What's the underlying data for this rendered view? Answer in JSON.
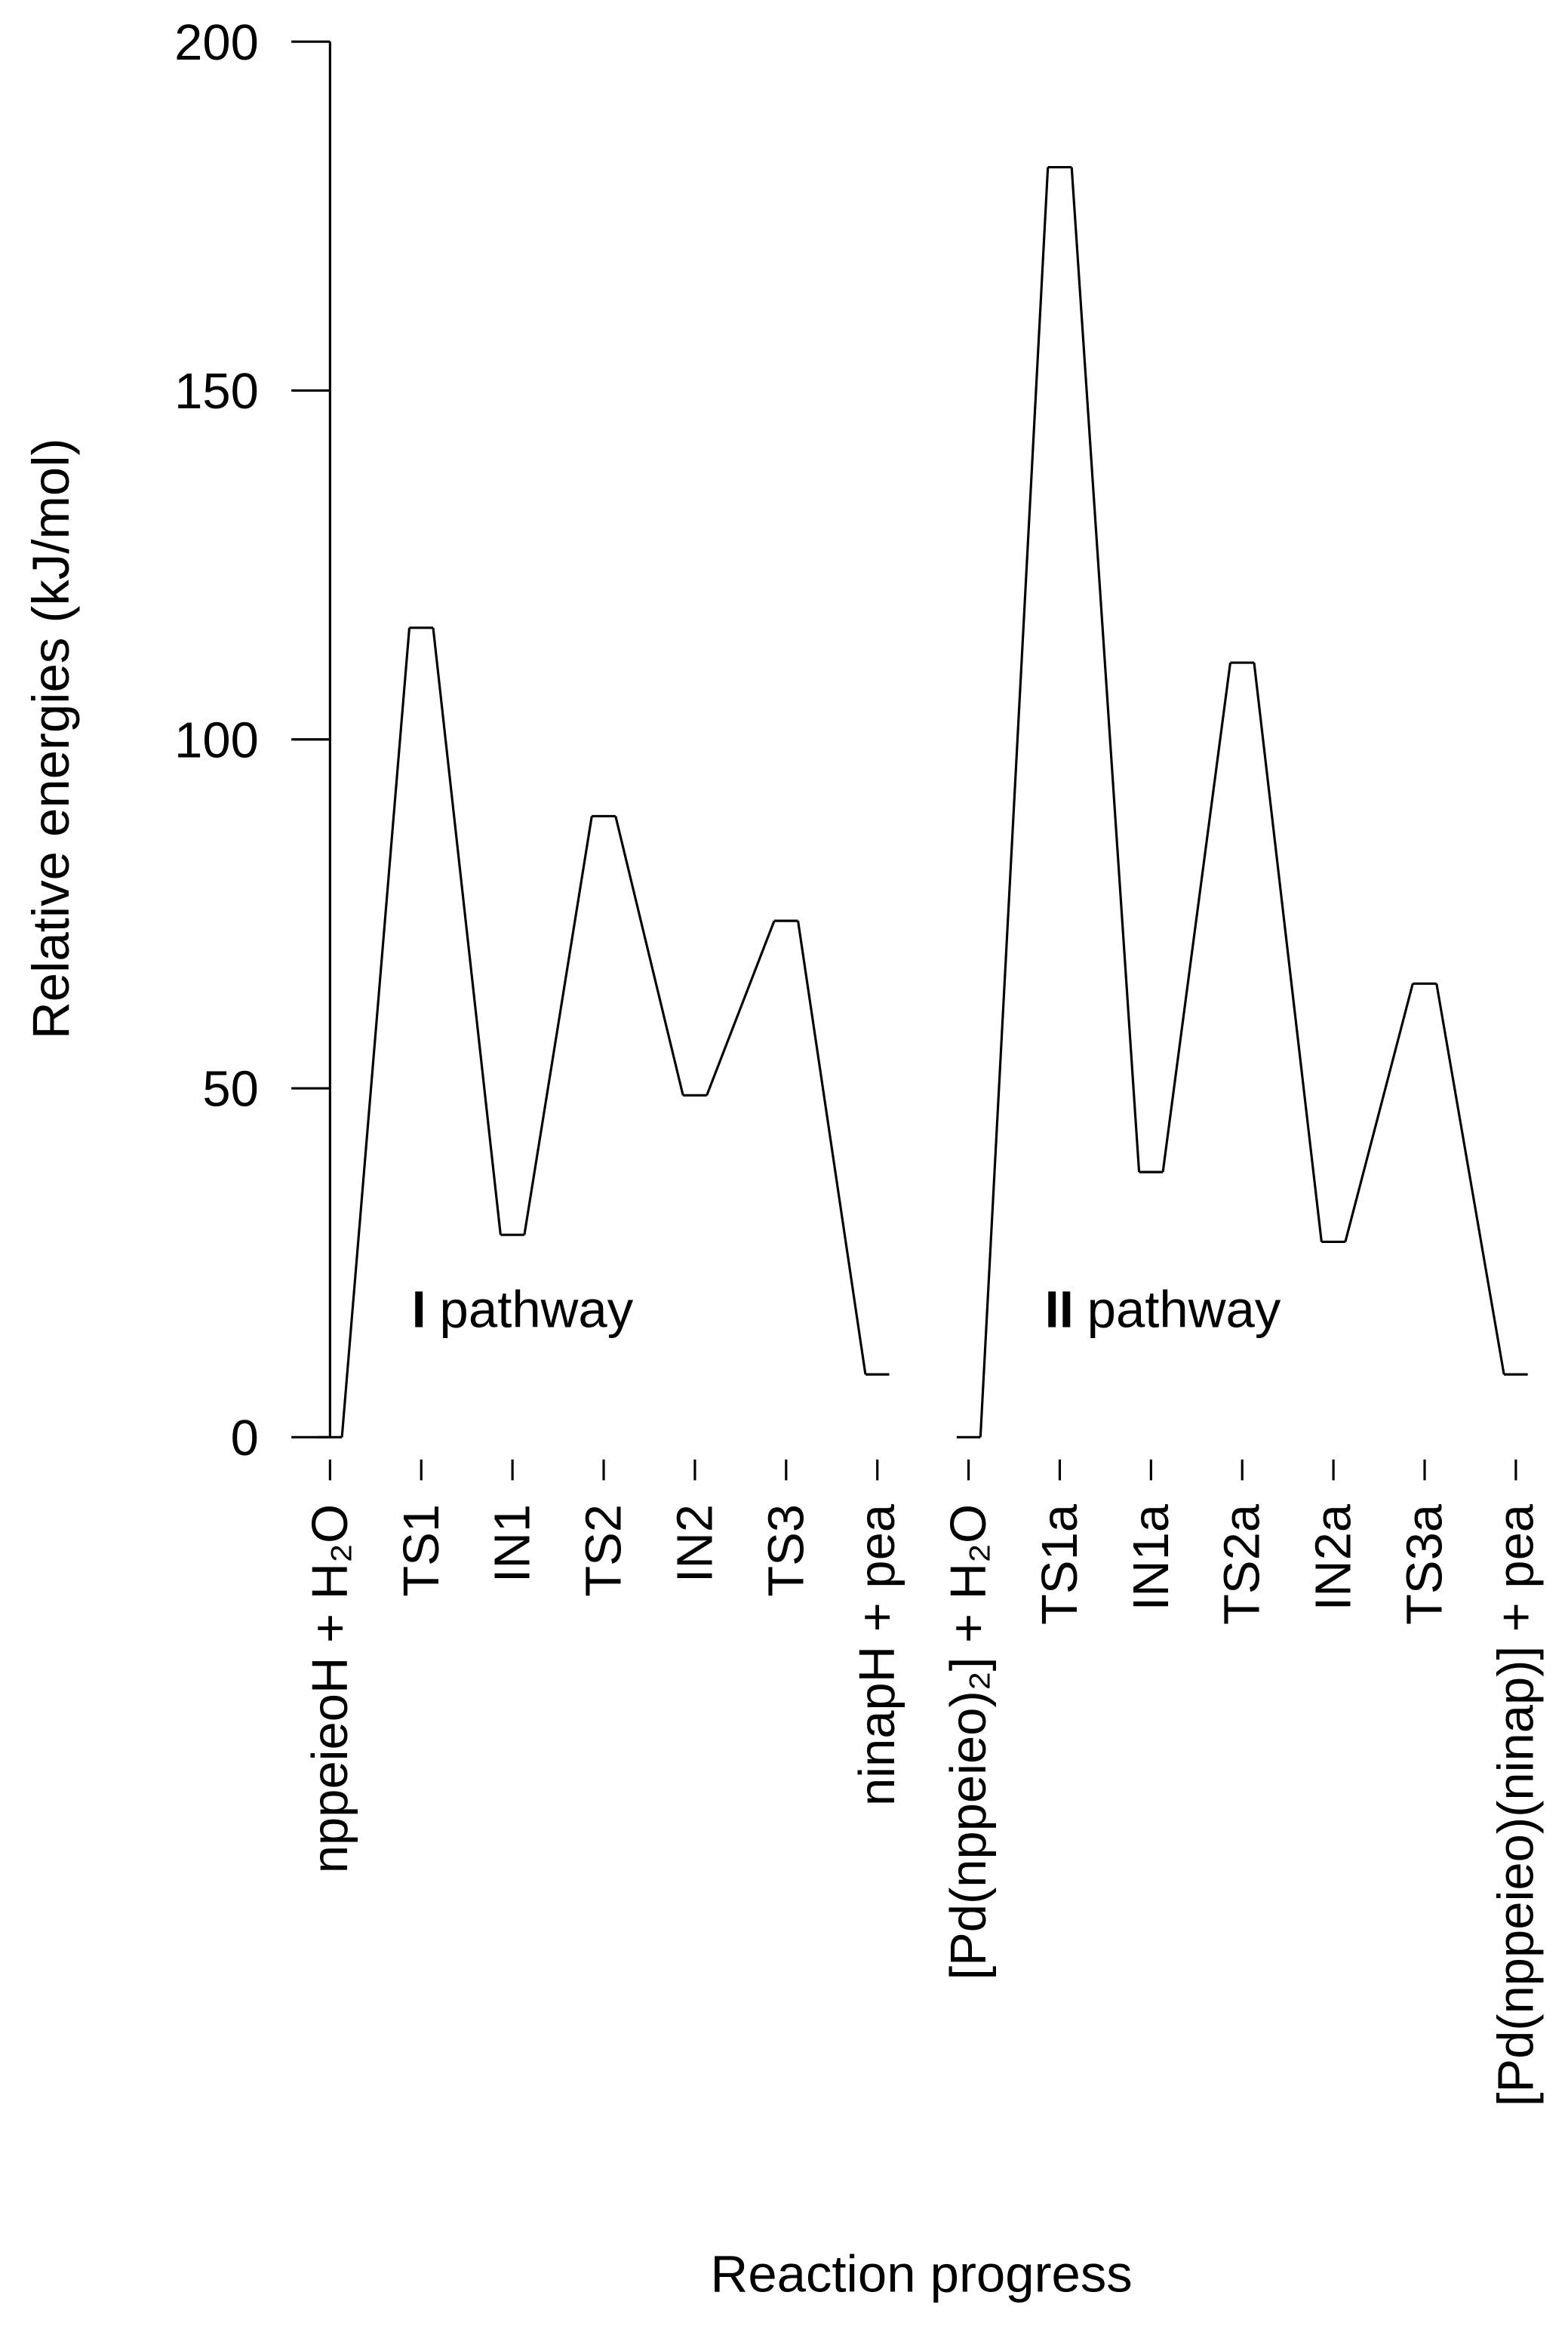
{
  "chart_data": {
    "type": "energy-profile",
    "xlabel": "Reaction progress",
    "ylabel": "Relative energies (kJ/mol)",
    "categories": [
      "nppeieoH + H₂O",
      "TS1",
      "IN1",
      "TS2",
      "IN2",
      "TS3",
      "ninapH + pea",
      "[Pd(nppeieo)₂] + H₂O",
      "TS1a",
      "IN1a",
      "TS2a",
      "IN2a",
      "TS3a",
      "[Pd(nppeieo)(ninap)] + pea"
    ],
    "series": [
      {
        "color": "#000000",
        "values": [
          0,
          116,
          29,
          89,
          49,
          74,
          9,
          null,
          null,
          null,
          null,
          null,
          null,
          null
        ]
      },
      {
        "color": "#000000",
        "values": [
          null,
          null,
          null,
          null,
          null,
          null,
          null,
          0,
          182,
          38,
          111,
          28,
          65,
          9
        ]
      }
    ],
    "annotations": [
      {
        "bold": "I",
        "text": "pathway"
      },
      {
        "bold": "II",
        "text": "pathway"
      }
    ],
    "ylim": [
      0,
      200
    ],
    "yticks": [
      0,
      50,
      100,
      150,
      200
    ],
    "grid": false
  }
}
